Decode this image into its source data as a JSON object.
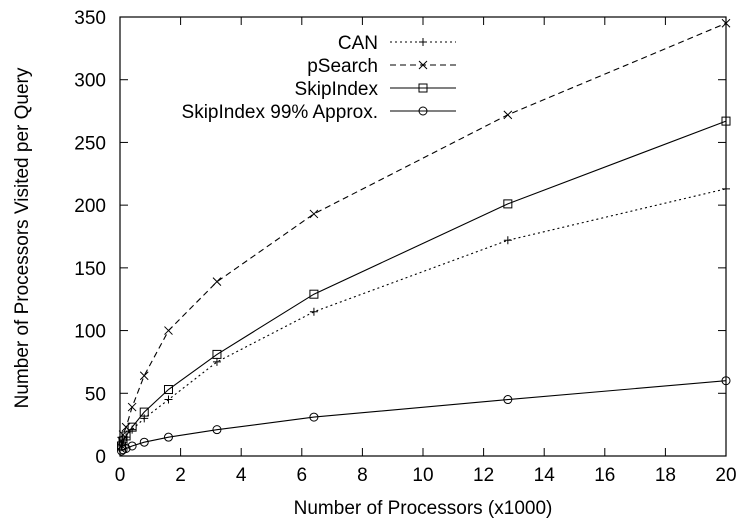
{
  "chart_data": {
    "type": "line",
    "title": "",
    "xlabel": "Number of Processors (x1000)",
    "ylabel": "Number of Processors Visited per Query",
    "xlim": [
      0,
      20
    ],
    "ylim": [
      0,
      350
    ],
    "xticks": [
      0,
      2,
      4,
      6,
      8,
      10,
      12,
      14,
      16,
      18,
      20
    ],
    "yticks": [
      0,
      50,
      100,
      150,
      200,
      250,
      300,
      350
    ],
    "grid": false,
    "legend_position": "top-left",
    "series": [
      {
        "name": "CAN",
        "style": "dotted",
        "marker": "plus",
        "x": [
          0.05,
          0.1,
          0.2,
          0.4,
          0.8,
          1.6,
          3.2,
          6.4,
          12.8,
          20.0
        ],
        "y": [
          8,
          11,
          15,
          21,
          30,
          45,
          75,
          115,
          172,
          213
        ]
      },
      {
        "name": "pSearch",
        "style": "dashed",
        "marker": "cross",
        "x": [
          0.05,
          0.1,
          0.2,
          0.4,
          0.8,
          1.6,
          3.2,
          6.4,
          12.8,
          20.0
        ],
        "y": [
          12,
          17,
          23,
          39,
          64,
          100,
          139,
          193,
          272,
          345
        ]
      },
      {
        "name": "SkipIndex",
        "style": "solid",
        "marker": "square",
        "x": [
          0.05,
          0.1,
          0.2,
          0.4,
          0.8,
          1.6,
          3.2,
          6.4,
          12.8,
          20.0
        ],
        "y": [
          8,
          12,
          16,
          23,
          35,
          53,
          81,
          129,
          201,
          267
        ]
      },
      {
        "name": "SkipIndex 99% Approx.",
        "style": "solid",
        "marker": "circle",
        "x": [
          0.05,
          0.1,
          0.2,
          0.4,
          0.8,
          1.6,
          3.2,
          6.4,
          12.8,
          20.0
        ],
        "y": [
          4,
          5,
          6,
          8,
          11,
          15,
          21,
          31,
          45,
          60
        ]
      }
    ]
  }
}
